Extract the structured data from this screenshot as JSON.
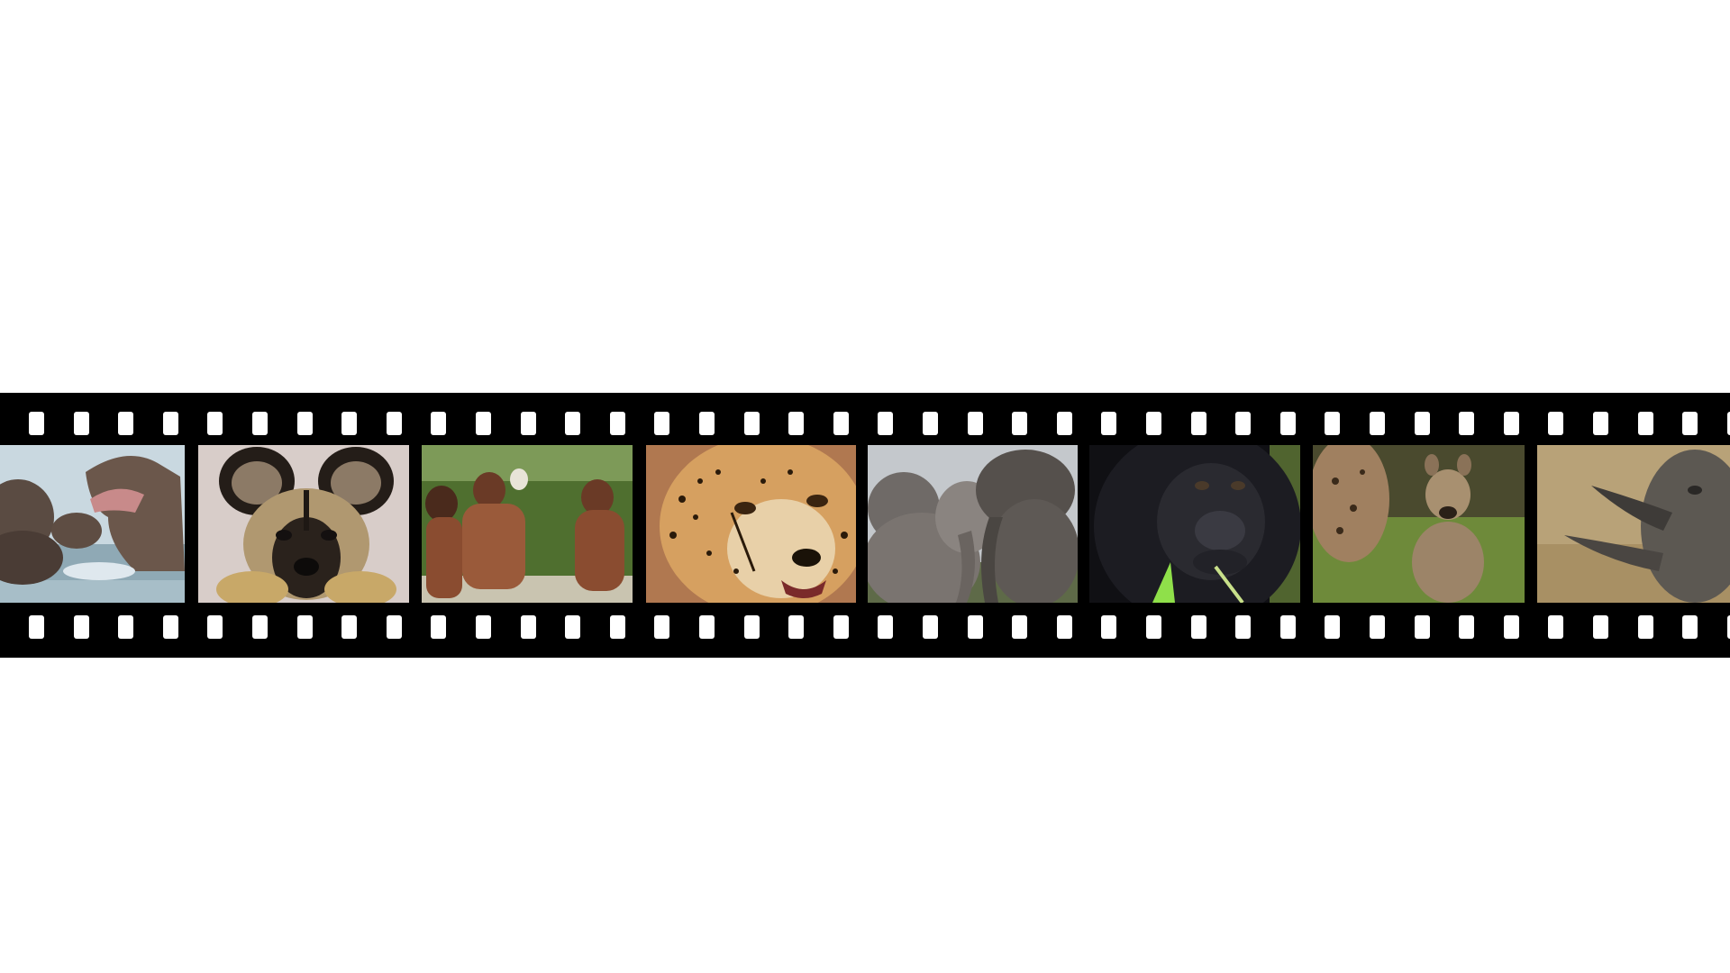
{
  "background_color": "#ffffff",
  "strip_color": "#000000",
  "sprocket_color": "#ffffff",
  "sprocket_count_per_row": 39,
  "frames": [
    {
      "subject": "hippos-in-water",
      "palette": [
        "#8fa9b5",
        "#4a3c35",
        "#c9d8e0"
      ]
    },
    {
      "subject": "african-wild-dog",
      "palette": [
        "#d8cdc9",
        "#6a5a3e",
        "#1e1a16"
      ]
    },
    {
      "subject": "people-drinking-from-shell",
      "palette": [
        "#4f6f2f",
        "#8a4c30",
        "#c9c4b0"
      ]
    },
    {
      "subject": "cheetah-face",
      "palette": [
        "#c88c4c",
        "#e0b070",
        "#1a1208"
      ]
    },
    {
      "subject": "elephants",
      "palette": [
        "#c4c8cc",
        "#6f6a67",
        "#55504c"
      ]
    },
    {
      "subject": "gorilla",
      "palette": [
        "#101014",
        "#2a2a30",
        "#8fb84a"
      ]
    },
    {
      "subject": "hyenas",
      "palette": [
        "#6e8a3a",
        "#9c8468",
        "#4a4a2e"
      ]
    },
    {
      "subject": "rhino",
      "palette": [
        "#b8a278",
        "#5c5852",
        "#3e3b38"
      ]
    }
  ]
}
